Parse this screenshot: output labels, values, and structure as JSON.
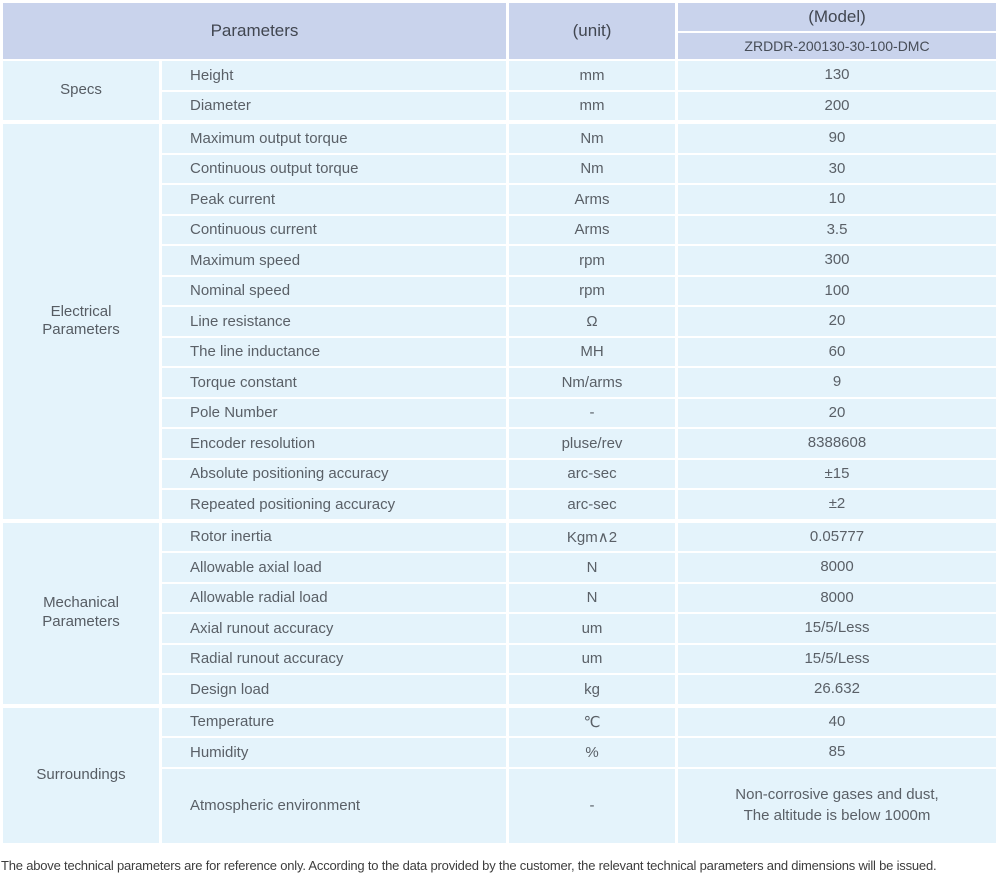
{
  "table": {
    "header": {
      "parameters_label": "Parameters",
      "unit_label": "(unit)",
      "model_label": "(Model)",
      "model_value": "ZRDDR-200130-30-100-DMC"
    },
    "groups": [
      {
        "name": "Specs",
        "rows": [
          {
            "param": "Height",
            "unit": "mm",
            "value": "130"
          },
          {
            "param": "Diameter",
            "unit": "mm",
            "value": "200"
          }
        ]
      },
      {
        "name": "Electrical Parameters",
        "rows": [
          {
            "param": "Maximum output torque",
            "unit": "Nm",
            "value": "90"
          },
          {
            "param": "Continuous output torque",
            "unit": "Nm",
            "value": "30"
          },
          {
            "param": "Peak current",
            "unit": "Arms",
            "value": "10"
          },
          {
            "param": "Continuous current",
            "unit": "Arms",
            "value": "3.5"
          },
          {
            "param": "Maximum speed",
            "unit": "rpm",
            "value": "300"
          },
          {
            "param": "Nominal speed",
            "unit": "rpm",
            "value": "100"
          },
          {
            "param": "Line resistance",
            "unit": "Ω",
            "value": "20"
          },
          {
            "param": "The line inductance",
            "unit": "MH",
            "value": "60"
          },
          {
            "param": "Torque constant",
            "unit": "Nm/arms",
            "value": "9"
          },
          {
            "param": "Pole Number",
            "unit": "-",
            "value": "20"
          },
          {
            "param": "Encoder resolution",
            "unit": "pluse/rev",
            "value": "8388608"
          },
          {
            "param": "Absolute positioning accuracy",
            "unit": "arc-sec",
            "value": "±15"
          },
          {
            "param": "Repeated positioning accuracy",
            "unit": "arc-sec",
            "value": "±2"
          }
        ]
      },
      {
        "name": "Mechanical Parameters",
        "rows": [
          {
            "param": "Rotor inertia",
            "unit": "Kgm∧2",
            "value": "0.05777"
          },
          {
            "param": "Allowable axial load",
            "unit": "N",
            "value": "8000"
          },
          {
            "param": "Allowable radial load",
            "unit": "N",
            "value": "8000"
          },
          {
            "param": "Axial runout accuracy",
            "unit": "um",
            "value": "15/5/Less"
          },
          {
            "param": "Radial runout accuracy",
            "unit": "um",
            "value": "15/5/Less"
          },
          {
            "param": "Design load",
            "unit": "kg",
            "value": "26.632"
          }
        ]
      },
      {
        "name": "Surroundings",
        "rows": [
          {
            "param": "Temperature",
            "unit": "℃",
            "value": "40"
          },
          {
            "param": "Humidity",
            "unit": "%",
            "value": "85"
          },
          {
            "param": "Atmospheric environment",
            "unit": "-",
            "value": "Non-corrosive gases and dust,\nThe altitude is below 1000m",
            "tall": true
          }
        ]
      }
    ]
  },
  "footer": {
    "note": "The above technical parameters are for reference only. According to the data provided by the customer, the relevant technical parameters and dimensions will be issued."
  },
  "colors": {
    "header_bg": "#c9d3ec",
    "row_bg": "#e4f3fb",
    "separator": "#ffffff",
    "header_text": "#414650",
    "body_text": "#5a6067",
    "note_text": "#3d3d3d"
  }
}
